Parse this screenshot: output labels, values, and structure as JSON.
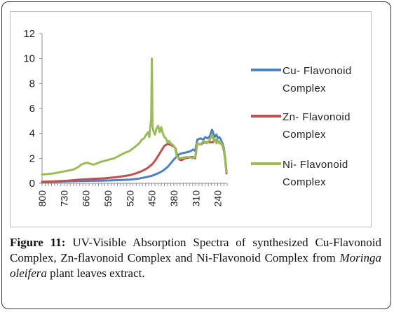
{
  "chart_data": {
    "type": "line",
    "title": "",
    "xlabel": "",
    "ylabel": "",
    "ylim": [
      0,
      12
    ],
    "yticks": [
      0,
      2,
      4,
      6,
      8,
      10,
      12
    ],
    "xlim": [
      800,
      210
    ],
    "x_reversed": true,
    "xticks": [
      800,
      730,
      660,
      590,
      520,
      450,
      380,
      310,
      240
    ],
    "grid": false,
    "legend_position": "right",
    "colors": {
      "cu": "#4f81bd",
      "zn": "#c0504d",
      "ni": "#9bbb59"
    },
    "series": [
      {
        "name": "Cu- Flavonoid Complex",
        "color": "#4f81bd",
        "x": [
          800,
          760,
          720,
          680,
          640,
          600,
          560,
          520,
          490,
          470,
          450,
          430,
          415,
          400,
          390,
          380,
          372,
          365,
          355,
          345,
          335,
          325,
          318,
          312,
          305,
          295,
          285,
          280,
          272,
          265,
          258,
          250,
          244,
          240,
          235,
          230,
          225,
          220,
          216,
          212
        ],
        "y": [
          0.1,
          0.12,
          0.15,
          0.18,
          0.2,
          0.22,
          0.25,
          0.3,
          0.38,
          0.48,
          0.6,
          0.8,
          1.0,
          1.3,
          1.6,
          1.9,
          2.1,
          2.3,
          2.4,
          2.45,
          2.5,
          2.6,
          2.7,
          2.6,
          3.5,
          3.6,
          3.5,
          3.7,
          3.6,
          3.8,
          4.3,
          3.7,
          3.9,
          3.6,
          3.7,
          3.5,
          3.2,
          2.8,
          2.0,
          0.9
        ]
      },
      {
        "name": "Zn- Flavonoid Complex",
        "color": "#c0504d",
        "x": [
          800,
          760,
          720,
          680,
          640,
          600,
          560,
          520,
          500,
          480,
          465,
          450,
          440,
          425,
          410,
          400,
          392,
          385,
          380,
          375,
          370,
          362,
          355,
          345,
          335,
          325,
          318,
          312,
          305,
          295,
          285,
          275,
          265,
          255,
          248,
          240,
          235,
          230,
          225,
          220,
          216,
          212
        ],
        "y": [
          0.12,
          0.15,
          0.2,
          0.3,
          0.35,
          0.4,
          0.5,
          0.65,
          0.8,
          1.0,
          1.2,
          1.5,
          1.8,
          2.4,
          3.0,
          3.15,
          3.1,
          3.0,
          2.95,
          2.8,
          2.3,
          1.9,
          1.85,
          2.0,
          2.05,
          2.1,
          2.1,
          2.0,
          3.2,
          3.1,
          3.25,
          3.3,
          3.3,
          3.3,
          3.5,
          3.4,
          3.3,
          3.2,
          3.0,
          2.6,
          1.8,
          0.8
        ]
      },
      {
        "name": "Ni- Flavonoid Complex",
        "color": "#9bbb59",
        "x": [
          800,
          780,
          760,
          740,
          720,
          700,
          685,
          675,
          665,
          655,
          645,
          635,
          625,
          615,
          600,
          585,
          570,
          555,
          540,
          530,
          520,
          510,
          500,
          490,
          482,
          475,
          468,
          462,
          458,
          455,
          452,
          450,
          448,
          445,
          440,
          435,
          430,
          425,
          420,
          415,
          410,
          405,
          400,
          395,
          390,
          385,
          380,
          375,
          370,
          360,
          350,
          340,
          330,
          320,
          312,
          305,
          295,
          285,
          275,
          265,
          258,
          252,
          248,
          244,
          240,
          235,
          230,
          225,
          220,
          216,
          212
        ],
        "y": [
          0.7,
          0.75,
          0.8,
          0.9,
          1.0,
          1.1,
          1.3,
          1.5,
          1.6,
          1.65,
          1.55,
          1.5,
          1.6,
          1.7,
          1.8,
          1.9,
          2.0,
          2.2,
          2.4,
          2.5,
          2.6,
          2.8,
          3.0,
          3.2,
          3.5,
          3.6,
          3.9,
          4.1,
          3.7,
          4.5,
          5.2,
          10.0,
          4.6,
          4.2,
          3.9,
          4.4,
          4.6,
          4.1,
          4.5,
          4.0,
          3.7,
          3.6,
          3.3,
          3.4,
          3.2,
          3.1,
          3.0,
          2.7,
          2.1,
          2.0,
          2.05,
          2.1,
          2.1,
          2.0,
          2.1,
          3.2,
          3.1,
          3.4,
          3.2,
          3.5,
          3.9,
          3.4,
          3.5,
          3.2,
          3.4,
          3.2,
          3.3,
          3.0,
          2.7,
          1.8,
          0.9
        ]
      }
    ],
    "legend": [
      {
        "line1": "Cu- Flavonoid",
        "line2": "Complex"
      },
      {
        "line1": "Zn- Flavonoid",
        "line2": "Complex"
      },
      {
        "line1": "Ni- Flavonoid",
        "line2": "Complex"
      }
    ]
  },
  "caption": {
    "label": "Figure 11:",
    "text_before": " UV-Visible Absorption Spectra of synthesized Cu-Flavonoid Complex, Zn-flavonoid Complex and Ni-Flavonoid Complex from ",
    "species": "Moringa oleifera",
    "text_after": " plant leaves extract."
  }
}
